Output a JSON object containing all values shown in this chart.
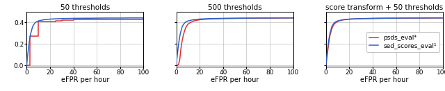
{
  "titles": [
    "50 thresholds",
    "500 thresholds",
    "score transform + 50 thresholds"
  ],
  "xlabel": "eFPR per hour",
  "xlim": [
    0,
    100
  ],
  "ylim": [
    -0.01,
    0.5
  ],
  "yticks": [
    0,
    0.2,
    0.4
  ],
  "xticks": [
    0,
    20,
    40,
    60,
    80,
    100
  ],
  "red_color": "#e03030",
  "blue_color": "#3060c8",
  "legend_labels": [
    "psds_eval⁴",
    "sed_scores_eval¹"
  ],
  "title_fontsize": 7.5,
  "label_fontsize": 7,
  "tick_fontsize": 6.5,
  "legend_fontsize": 6.5,
  "blue_x": [
    0,
    0.5,
    1,
    1.5,
    2,
    2.5,
    3,
    3.5,
    4,
    4.5,
    5,
    6,
    7,
    8,
    9,
    10,
    12,
    14,
    16,
    18,
    20,
    25,
    30,
    35,
    40,
    50,
    60,
    70,
    80,
    90,
    100
  ],
  "blue_y": [
    0,
    0.06,
    0.11,
    0.16,
    0.2,
    0.24,
    0.27,
    0.3,
    0.32,
    0.34,
    0.36,
    0.38,
    0.395,
    0.405,
    0.41,
    0.415,
    0.42,
    0.425,
    0.428,
    0.43,
    0.432,
    0.435,
    0.437,
    0.438,
    0.439,
    0.44,
    0.441,
    0.442,
    0.442,
    0.443,
    0.443
  ],
  "red50_x": [
    0,
    3,
    3,
    3,
    10,
    10,
    10,
    20,
    20,
    25,
    25,
    30,
    30,
    40,
    40,
    100
  ],
  "red50_y": [
    0,
    0,
    0.005,
    0.27,
    0.27,
    0.27,
    0.41,
    0.41,
    0.41,
    0.415,
    0.415,
    0.42,
    0.42,
    0.43,
    0.43,
    0.433
  ],
  "red500_x": [
    0,
    1,
    2,
    3,
    4,
    5,
    6,
    7,
    8,
    9,
    10,
    12,
    15,
    18,
    20,
    25,
    30,
    40,
    50,
    70,
    100
  ],
  "red500_y": [
    0,
    0,
    0.01,
    0.06,
    0.16,
    0.23,
    0.28,
    0.32,
    0.35,
    0.37,
    0.385,
    0.4,
    0.415,
    0.422,
    0.426,
    0.431,
    0.434,
    0.437,
    0.439,
    0.441,
    0.443
  ],
  "redT_x": [
    0,
    0.5,
    1,
    1.5,
    2,
    2.5,
    3,
    3.5,
    4,
    4.5,
    5,
    6,
    7,
    8,
    10,
    12,
    15,
    20,
    25,
    30,
    40,
    50,
    70,
    100
  ],
  "redT_y": [
    0,
    0.04,
    0.08,
    0.13,
    0.17,
    0.21,
    0.25,
    0.28,
    0.3,
    0.32,
    0.34,
    0.365,
    0.383,
    0.395,
    0.41,
    0.418,
    0.425,
    0.431,
    0.434,
    0.436,
    0.438,
    0.44,
    0.441,
    0.443
  ]
}
